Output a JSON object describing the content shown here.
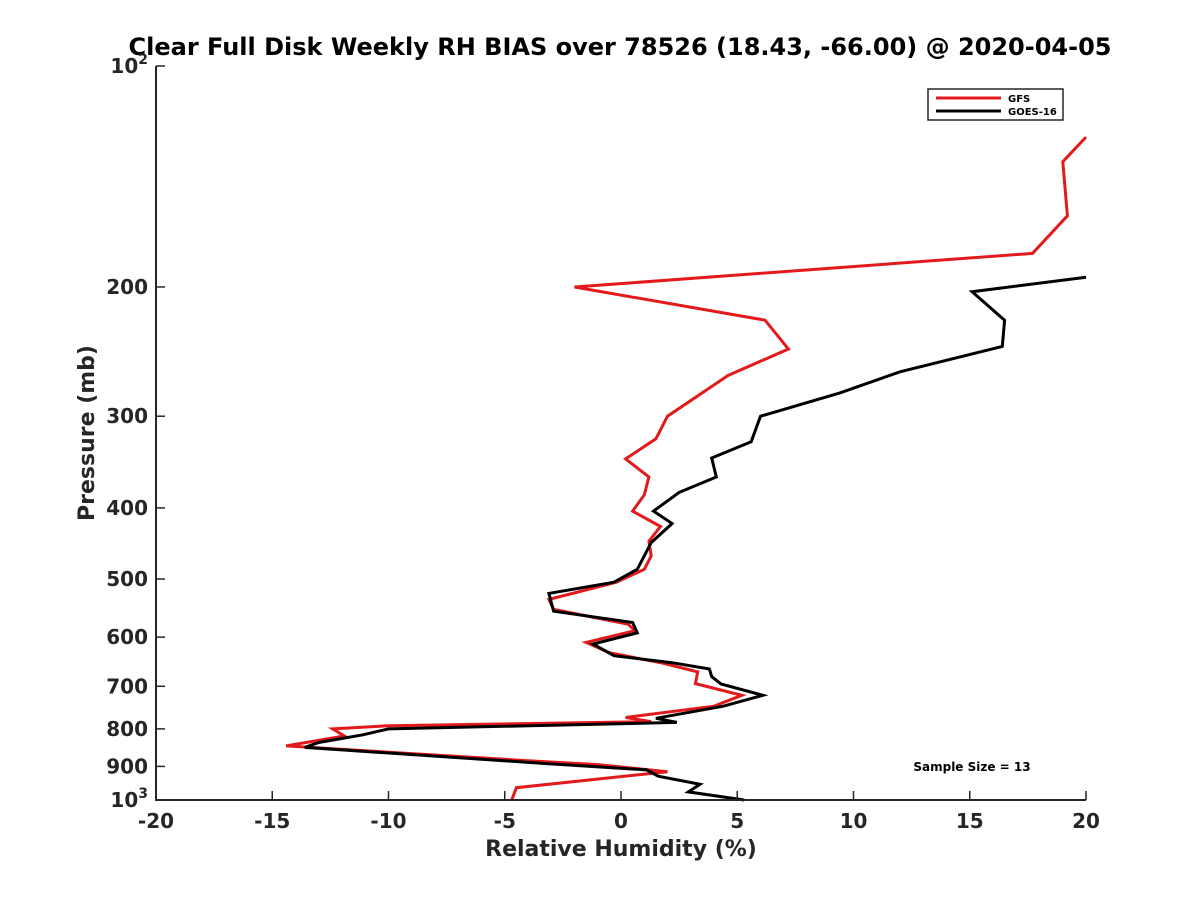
{
  "chart_data": {
    "type": "line",
    "title": "Clear Full Disk Weekly RH BIAS over 78526 (18.43, -66.00) @ 2020-04-05",
    "xlabel": "Relative Humidity (%)",
    "ylabel": "Pressure (mb)",
    "xlim": [
      -20,
      20
    ],
    "ylim": [
      100,
      1000
    ],
    "yscale": "log",
    "y_reversed": true,
    "grid": false,
    "legend_position": "top-right",
    "x_ticks": [
      -20,
      -15,
      -10,
      -5,
      0,
      5,
      10,
      15,
      20
    ],
    "x_tick_labels": [
      "-20",
      "-15",
      "-10",
      "-5",
      "0",
      "5",
      "10",
      "15",
      "20"
    ],
    "y_ticks": [
      100,
      200,
      300,
      400,
      500,
      600,
      700,
      800,
      900,
      1000
    ],
    "y_tick_labels": [
      {
        "base": "10",
        "exp": "2"
      },
      {
        "base": "200"
      },
      {
        "base": "300"
      },
      {
        "base": "400"
      },
      {
        "base": "500"
      },
      {
        "base": "600"
      },
      {
        "base": "700"
      },
      {
        "base": "800"
      },
      {
        "base": "900"
      },
      {
        "base": "10",
        "exp": "3"
      }
    ],
    "series": [
      {
        "name": "GFS",
        "color": "#e31a1c",
        "points": [
          [
            20.0,
            125
          ],
          [
            19.0,
            135
          ],
          [
            19.2,
            160
          ],
          [
            17.7,
            180
          ],
          [
            -2.0,
            200
          ],
          [
            6.2,
            222
          ],
          [
            7.2,
            243
          ],
          [
            4.6,
            264
          ],
          [
            2.0,
            300
          ],
          [
            1.5,
            322
          ],
          [
            0.2,
            343
          ],
          [
            1.2,
            363
          ],
          [
            1.0,
            384
          ],
          [
            0.5,
            404
          ],
          [
            1.7,
            424
          ],
          [
            1.2,
            444
          ],
          [
            1.3,
            465
          ],
          [
            1.0,
            485
          ],
          [
            -0.2,
            505
          ],
          [
            -3.1,
            533
          ],
          [
            -2.9,
            550
          ],
          [
            0.3,
            576
          ],
          [
            0.6,
            588
          ],
          [
            -1.5,
            610
          ],
          [
            -0.5,
            630
          ],
          [
            1.8,
            651
          ],
          [
            3.3,
            669
          ],
          [
            3.2,
            694
          ],
          [
            5.2,
            720
          ],
          [
            4.0,
            745
          ],
          [
            0.2,
            772
          ],
          [
            1.3,
            782
          ],
          [
            -10.0,
            792
          ],
          [
            -12.4,
            800
          ],
          [
            -11.9,
            818
          ],
          [
            -14.4,
            844
          ],
          [
            -4.0,
            884
          ],
          [
            -1.0,
            895
          ],
          [
            2.0,
            915
          ],
          [
            -4.5,
            962
          ],
          [
            -4.7,
            1000
          ]
        ]
      },
      {
        "name": "GOES-16",
        "color": "#000000",
        "points": [
          [
            20.0,
            194
          ],
          [
            15.1,
            203
          ],
          [
            16.5,
            222
          ],
          [
            16.4,
            241
          ],
          [
            12.0,
            261
          ],
          [
            9.4,
            279
          ],
          [
            6.0,
            300
          ],
          [
            5.6,
            325
          ],
          [
            3.9,
            342
          ],
          [
            4.1,
            363
          ],
          [
            2.5,
            381
          ],
          [
            1.4,
            404
          ],
          [
            2.2,
            420
          ],
          [
            1.3,
            446
          ],
          [
            0.7,
            485
          ],
          [
            -0.3,
            505
          ],
          [
            -3.1,
            523
          ],
          [
            -2.9,
            553
          ],
          [
            0.5,
            573
          ],
          [
            0.7,
            592
          ],
          [
            -1.2,
            613
          ],
          [
            -0.3,
            636
          ],
          [
            2.2,
            650
          ],
          [
            3.8,
            663
          ],
          [
            3.9,
            679
          ],
          [
            4.3,
            695
          ],
          [
            6.1,
            720
          ],
          [
            4.4,
            745
          ],
          [
            1.5,
            774
          ],
          [
            2.4,
            784
          ],
          [
            -10.0,
            800
          ],
          [
            -11.1,
            815
          ],
          [
            -13.0,
            835
          ],
          [
            -13.6,
            848
          ],
          [
            -3.2,
            892
          ],
          [
            1.1,
            910
          ],
          [
            1.6,
            928
          ],
          [
            3.4,
            952
          ],
          [
            2.9,
            975
          ],
          [
            5.3,
            1000
          ]
        ]
      }
    ],
    "annotation": "Sample Size = 13"
  }
}
